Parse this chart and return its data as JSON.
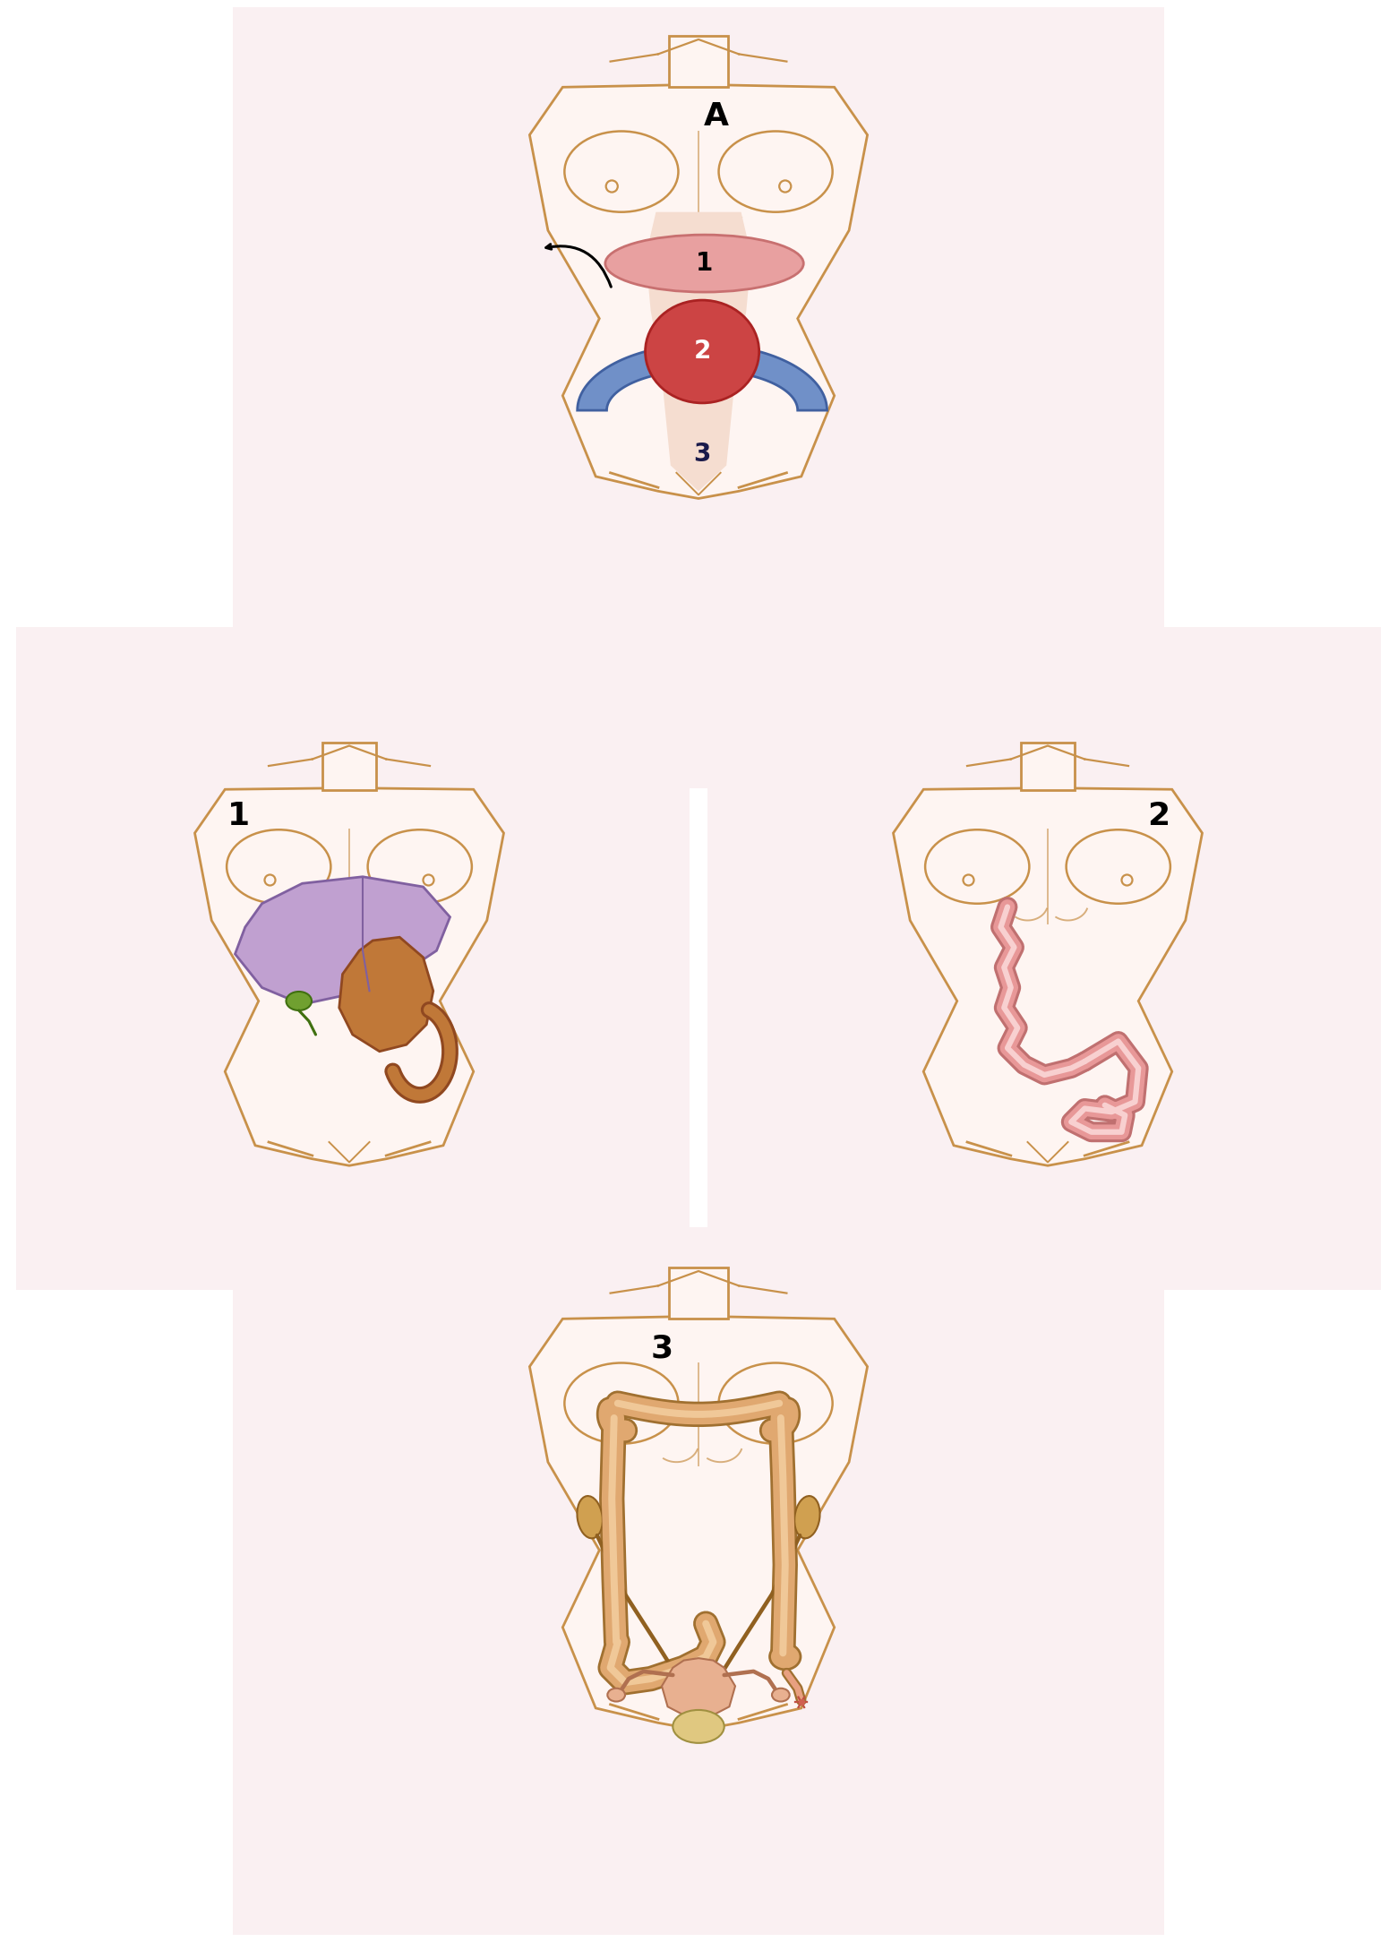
{
  "bg_color": "#ffffff",
  "skin_color": "#C8914A",
  "skin_fill": "#FEF5F2",
  "panel_bg": "#FAF0F2",
  "zone1_fill": "#E8A0A0",
  "zone1_edge": "#C87070",
  "zone2_fill": "#CC4444",
  "zone2_edge": "#AA2222",
  "zone3_fill": "#7090C8",
  "zone3_edge": "#4060A0",
  "abdomen_fill": "#F5DDD0",
  "liver_fill": "#C0A0D0",
  "liver_edge": "#8060A0",
  "gallbladder_fill": "#70A030",
  "stomach_fill": "#C07838",
  "stomach_edge": "#904820",
  "intestine_fill": "#E89898",
  "intestine_edge": "#C07070",
  "intestine_light": "#F8D0D0",
  "colon_fill": "#E0A870",
  "colon_edge": "#A07030",
  "colon_light": "#F0C898",
  "kidney_fill": "#D0A050",
  "kidney_edge": "#906020",
  "uterus_fill": "#E8B090",
  "uterus_edge": "#B07050",
  "bladder_fill": "#E0C880",
  "bladder_edge": "#A09040",
  "note_color": "#000000"
}
